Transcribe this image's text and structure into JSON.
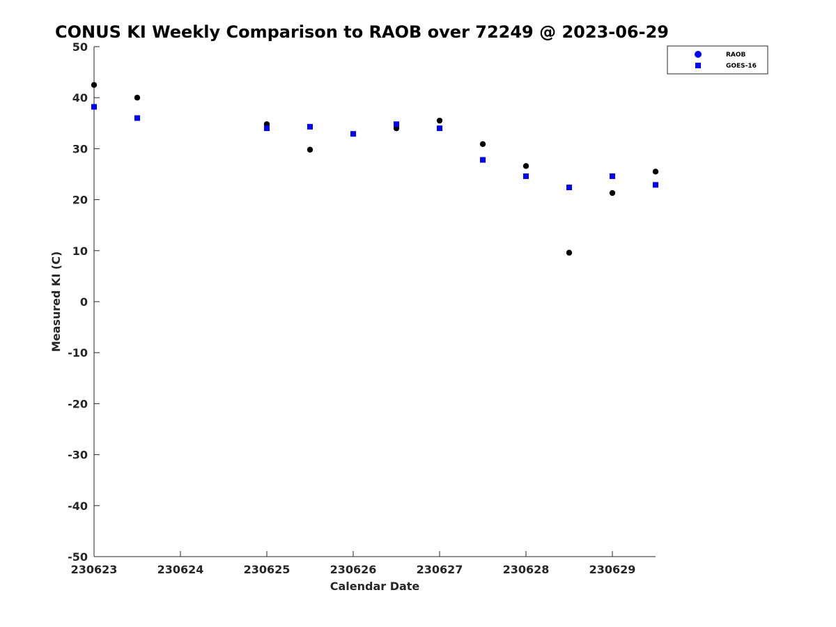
{
  "chart_data": {
    "type": "scatter",
    "title": "CONUS KI Weekly Comparison to RAOB over 72249 @ 2023-06-29",
    "xlabel": "Calendar Date",
    "ylabel": "Measured KI (C)",
    "xlim": [
      0,
      6.5
    ],
    "ylim": [
      -50,
      50
    ],
    "x_ticks": [
      {
        "pos": 0,
        "label": "230623"
      },
      {
        "pos": 1,
        "label": "230624"
      },
      {
        "pos": 2,
        "label": "230625"
      },
      {
        "pos": 3,
        "label": "230626"
      },
      {
        "pos": 4,
        "label": "230627"
      },
      {
        "pos": 5,
        "label": "230628"
      },
      {
        "pos": 6,
        "label": "230629"
      }
    ],
    "y_ticks": [
      50,
      40,
      30,
      20,
      10,
      0,
      -10,
      -20,
      -30,
      -40,
      -50
    ],
    "grid": false,
    "legend_position": "top-right",
    "series": [
      {
        "name": "RAOB",
        "marker": "circle",
        "color": "#000000",
        "legend_color": "#0000ff",
        "x": [
          0,
          0.5,
          2,
          2.5,
          4,
          3.5,
          4.5,
          5,
          5.5,
          6,
          6.5
        ],
        "y": [
          42.5,
          40.0,
          34.8,
          29.8,
          35.5,
          34.0,
          30.9,
          26.6,
          9.6,
          21.3,
          25.5
        ]
      },
      {
        "name": "GOES-16",
        "marker": "square",
        "color": "#0000ff",
        "legend_color": "#0000ff",
        "x": [
          0,
          0.5,
          2,
          2.5,
          3,
          3.5,
          4,
          4.5,
          5,
          5.5,
          6,
          6.5
        ],
        "y": [
          38.2,
          36.0,
          34.0,
          34.3,
          32.9,
          34.8,
          34.0,
          27.8,
          24.6,
          22.4,
          24.6,
          22.9
        ]
      }
    ]
  }
}
